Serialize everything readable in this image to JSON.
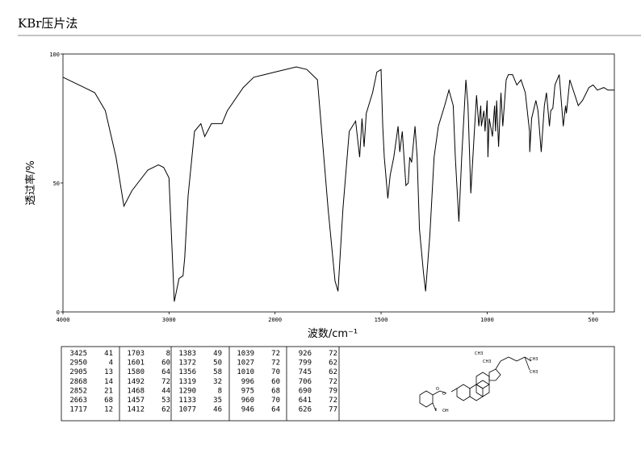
{
  "header": {
    "title": "KBr压片法"
  },
  "chart_data": {
    "type": "line",
    "xlabel": "波数/cm⁻¹",
    "ylabel": "透过率/%",
    "xlim": [
      4000,
      400
    ],
    "xscale_break": 2000,
    "xticks": [
      4000,
      3000,
      2000,
      1500,
      1000,
      500
    ],
    "ylim": [
      0,
      100
    ],
    "yticks": [
      0,
      50,
      100
    ],
    "color": "#000000",
    "x": [
      4000,
      3900,
      3800,
      3700,
      3600,
      3500,
      3425,
      3350,
      3200,
      3100,
      3050,
      3000,
      2950,
      2905,
      2868,
      2852,
      2820,
      2760,
      2700,
      2663,
      2600,
      2500,
      2450,
      2300,
      2200,
      2100,
      2000,
      1900,
      1850,
      1800,
      1750,
      1717,
      1703,
      1680,
      1650,
      1620,
      1601,
      1590,
      1580,
      1570,
      1540,
      1520,
      1500,
      1492,
      1485,
      1468,
      1457,
      1440,
      1420,
      1412,
      1400,
      1383,
      1372,
      1365,
      1356,
      1340,
      1330,
      1319,
      1300,
      1290,
      1270,
      1250,
      1230,
      1200,
      1180,
      1160,
      1150,
      1133,
      1120,
      1100,
      1090,
      1077,
      1060,
      1050,
      1039,
      1030,
      1027,
      1015,
      1010,
      1000,
      996,
      990,
      975,
      965,
      960,
      955,
      946,
      935,
      926,
      910,
      900,
      880,
      860,
      840,
      820,
      800,
      799,
      790,
      770,
      760,
      745,
      730,
      720,
      706,
      700,
      690,
      680,
      660,
      641,
      630,
      626,
      610,
      590,
      570,
      550,
      520,
      500,
      480,
      450,
      430,
      400
    ],
    "values": [
      91,
      89,
      87,
      85,
      78,
      60,
      41,
      47,
      55,
      57,
      56,
      52,
      4,
      13,
      14,
      21,
      45,
      70,
      73,
      68,
      73,
      73,
      78,
      87,
      91,
      92,
      93,
      95,
      94,
      90,
      40,
      12,
      8,
      40,
      70,
      74,
      60,
      75,
      64,
      77,
      85,
      93,
      94,
      72,
      60,
      44,
      53,
      60,
      72,
      62,
      70,
      49,
      50,
      60,
      58,
      72,
      60,
      32,
      15,
      8,
      30,
      60,
      72,
      80,
      86,
      80,
      60,
      35,
      60,
      90,
      80,
      46,
      70,
      84,
      72,
      80,
      72,
      78,
      70,
      82,
      60,
      75,
      68,
      80,
      70,
      82,
      64,
      85,
      72,
      90,
      92,
      92,
      88,
      90,
      85,
      70,
      62,
      75,
      82,
      78,
      62,
      80,
      85,
      72,
      78,
      79,
      88,
      92,
      72,
      80,
      77,
      90,
      85,
      80,
      82,
      87,
      88,
      86,
      87,
      86,
      86
    ]
  },
  "peak_table": {
    "columns": [
      [
        [
          3425,
          41
        ],
        [
          2950,
          4
        ],
        [
          2905,
          13
        ],
        [
          2868,
          14
        ],
        [
          2852,
          21
        ],
        [
          2663,
          68
        ],
        [
          1717,
          12
        ]
      ],
      [
        [
          1703,
          8
        ],
        [
          1601,
          60
        ],
        [
          1580,
          64
        ],
        [
          1492,
          72
        ],
        [
          1468,
          44
        ],
        [
          1457,
          53
        ],
        [
          1412,
          62
        ]
      ],
      [
        [
          1383,
          49
        ],
        [
          1372,
          50
        ],
        [
          1356,
          58
        ],
        [
          1319,
          32
        ],
        [
          1290,
          8
        ],
        [
          1133,
          35
        ],
        [
          1077,
          46
        ]
      ],
      [
        [
          1039,
          72
        ],
        [
          1027,
          72
        ],
        [
          1010,
          70
        ],
        [
          996,
          60
        ],
        [
          975,
          68
        ],
        [
          960,
          70
        ],
        [
          946,
          64
        ]
      ],
      [
        [
          926,
          72
        ],
        [
          799,
          62
        ],
        [
          745,
          62
        ],
        [
          706,
          72
        ],
        [
          690,
          79
        ],
        [
          641,
          72
        ],
        [
          626,
          77
        ]
      ]
    ]
  },
  "structure": {
    "labels": [
      "CH3",
      "CH3",
      "CH3",
      "CH3",
      "O",
      "O",
      "OH"
    ]
  }
}
